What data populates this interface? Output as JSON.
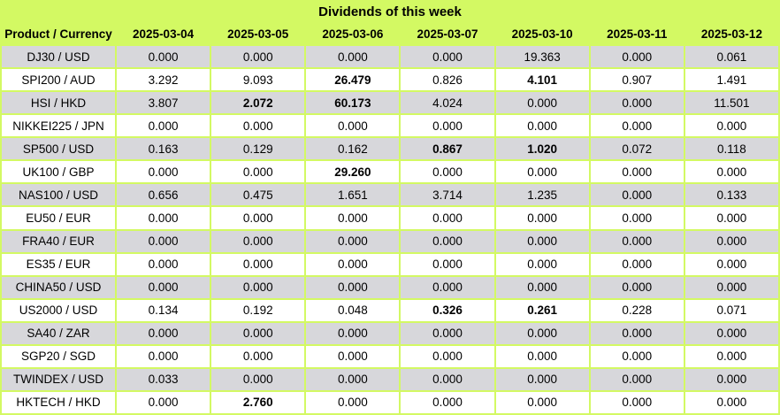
{
  "chart_data": {
    "type": "table",
    "title": "Dividends of this week",
    "columns": [
      "Product / Currency",
      "2025-03-04",
      "2025-03-05",
      "2025-03-06",
      "2025-03-07",
      "2025-03-10",
      "2025-03-11",
      "2025-03-12"
    ],
    "rows": [
      {
        "product": "DJ30 / USD",
        "values": [
          "0.000",
          "0.000",
          "0.000",
          "0.000",
          "19.363",
          "0.000",
          "0.061"
        ],
        "bold_columns": []
      },
      {
        "product": "SPI200 / AUD",
        "values": [
          "3.292",
          "9.093",
          "26.479",
          "0.826",
          "4.101",
          "0.907",
          "1.491"
        ],
        "bold_columns": [
          2,
          4
        ]
      },
      {
        "product": "HSI / HKD",
        "values": [
          "3.807",
          "2.072",
          "60.173",
          "4.024",
          "0.000",
          "0.000",
          "11.501"
        ],
        "bold_columns": [
          1,
          2
        ]
      },
      {
        "product": "NIKKEI225 / JPN",
        "values": [
          "0.000",
          "0.000",
          "0.000",
          "0.000",
          "0.000",
          "0.000",
          "0.000"
        ],
        "bold_columns": []
      },
      {
        "product": "SP500 / USD",
        "values": [
          "0.163",
          "0.129",
          "0.162",
          "0.867",
          "1.020",
          "0.072",
          "0.118"
        ],
        "bold_columns": [
          3,
          4
        ]
      },
      {
        "product": "UK100 / GBP",
        "values": [
          "0.000",
          "0.000",
          "29.260",
          "0.000",
          "0.000",
          "0.000",
          "0.000"
        ],
        "bold_columns": [
          2
        ]
      },
      {
        "product": "NAS100 / USD",
        "values": [
          "0.656",
          "0.475",
          "1.651",
          "3.714",
          "1.235",
          "0.000",
          "0.133"
        ],
        "bold_columns": []
      },
      {
        "product": "EU50 / EUR",
        "values": [
          "0.000",
          "0.000",
          "0.000",
          "0.000",
          "0.000",
          "0.000",
          "0.000"
        ],
        "bold_columns": []
      },
      {
        "product": "FRA40 / EUR",
        "values": [
          "0.000",
          "0.000",
          "0.000",
          "0.000",
          "0.000",
          "0.000",
          "0.000"
        ],
        "bold_columns": []
      },
      {
        "product": "ES35 / EUR",
        "values": [
          "0.000",
          "0.000",
          "0.000",
          "0.000",
          "0.000",
          "0.000",
          "0.000"
        ],
        "bold_columns": []
      },
      {
        "product": "CHINA50 / USD",
        "values": [
          "0.000",
          "0.000",
          "0.000",
          "0.000",
          "0.000",
          "0.000",
          "0.000"
        ],
        "bold_columns": []
      },
      {
        "product": "US2000 / USD",
        "values": [
          "0.134",
          "0.192",
          "0.048",
          "0.326",
          "0.261",
          "0.228",
          "0.071"
        ],
        "bold_columns": [
          3,
          4
        ]
      },
      {
        "product": "SA40 / ZAR",
        "values": [
          "0.000",
          "0.000",
          "0.000",
          "0.000",
          "0.000",
          "0.000",
          "0.000"
        ],
        "bold_columns": []
      },
      {
        "product": "SGP20 / SGD",
        "values": [
          "0.000",
          "0.000",
          "0.000",
          "0.000",
          "0.000",
          "0.000",
          "0.000"
        ],
        "bold_columns": []
      },
      {
        "product": "TWINDEX / USD",
        "values": [
          "0.033",
          "0.000",
          "0.000",
          "0.000",
          "0.000",
          "0.000",
          "0.000"
        ],
        "bold_columns": []
      },
      {
        "product": "HKTECH / HKD",
        "values": [
          "0.000",
          "2.760",
          "0.000",
          "0.000",
          "0.000",
          "0.000",
          "0.000"
        ],
        "bold_columns": [
          1
        ]
      }
    ],
    "layout": {
      "row_shading": "alternating, first data row gray",
      "grid": "on"
    }
  },
  "colors": {
    "header_green": "#d3f963",
    "border_green": "#d3f963",
    "row_gray": "#d7d7db",
    "row_white": "#ffffff",
    "text": "#000000"
  }
}
